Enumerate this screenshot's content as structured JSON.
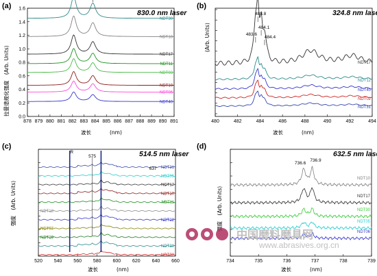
{
  "chart_data": [
    {
      "type": "line",
      "panel_label": "(a)",
      "laser": "830.0 nm laser",
      "xlabel": "(nm)",
      "ylabel": "(Arb. Units)",
      "ylabel_cn": "拉曼谱规化强度",
      "xlim": [
        878,
        891
      ],
      "ylim": [
        0,
        1.6
      ],
      "xticks": [
        878,
        879,
        880,
        881,
        882,
        883,
        884,
        885,
        886,
        887,
        888,
        889,
        890,
        891
      ],
      "yticks": [
        0.0,
        0.2,
        0.4,
        0.6,
        0.8,
        1.0,
        1.2,
        1.4,
        1.6
      ],
      "peaks": [
        {
          "x": 882.1,
          "label": "882.1"
        },
        {
          "x": 883.8,
          "label": "883.8"
        }
      ],
      "series": [
        {
          "name": "NDT30",
          "color": "#2a8a8a",
          "offset": 1.45,
          "amp": [
            0.32,
            0.22
          ]
        },
        {
          "name": "NDT18",
          "color": "#808080",
          "offset": 1.18,
          "amp": [
            0.3,
            0.2
          ]
        },
        {
          "name": "NDT17",
          "color": "#303030",
          "offset": 0.92,
          "amp": [
            0.28,
            0.18
          ]
        },
        {
          "name": "NDT11",
          "color": "#1a8f1a",
          "offset": 0.78,
          "amp": [
            0.22,
            0.15
          ]
        },
        {
          "name": "NDT03",
          "color": "#44bb44",
          "offset": 0.65,
          "amp": [
            0.2,
            0.14
          ]
        },
        {
          "name": "NDT10",
          "color": "#8b1a1a",
          "offset": 0.46,
          "amp": [
            0.2,
            0.14
          ]
        },
        {
          "name": "NDT06",
          "color": "#ff44dd",
          "offset": 0.36,
          "amp": [
            0.16,
            0.12
          ]
        },
        {
          "name": "NDT40",
          "color": "#3333cc",
          "offset": 0.22,
          "amp": [
            0.14,
            0.1
          ]
        }
      ]
    },
    {
      "type": "line",
      "panel_label": "(b)",
      "laser": "324.8 nm laser",
      "xlabel": "(nm)",
      "ylabel": "(Arb. Units)",
      "xlim": [
        480,
        494
      ],
      "xticks": [
        480,
        482,
        484,
        486,
        488,
        490,
        492,
        494
      ],
      "peaks": [
        {
          "x": 483.6,
          "label": "483.6"
        },
        {
          "x": 483.8,
          "label": "483.8"
        },
        {
          "x": 484.1,
          "label": "484.1"
        },
        {
          "x": 484.4,
          "label": "484.4"
        }
      ],
      "series": [
        {
          "name": "NDT17",
          "color": "#303030"
        },
        {
          "name": "NDT12",
          "color": "#2a8a8a"
        },
        {
          "name": "NDT40",
          "color": "#3333cc"
        },
        {
          "name": "NDT02",
          "color": "#cc2222"
        },
        {
          "name": "NDT31",
          "color": "#3344aa"
        }
      ]
    },
    {
      "type": "line",
      "panel_label": "(c)",
      "laser": "514.5 nm laser",
      "xlabel": "(nm)",
      "ylabel": "(Arb. Units)",
      "ylabel_cn": "强度",
      "xlim": [
        520,
        660
      ],
      "xticks": [
        520,
        540,
        560,
        580,
        600,
        620,
        640,
        660
      ],
      "peaks": [
        {
          "x": 552,
          "label": "R"
        },
        {
          "x": 575,
          "label": "575"
        },
        {
          "x": 637,
          "label": "637"
        }
      ],
      "series": [
        {
          "name": "NDT31",
          "color": "#3344aa"
        },
        {
          "name": "NDT05",
          "color": "#22cccc"
        },
        {
          "name": "NDT17",
          "color": "#303030"
        },
        {
          "name": "NDT10",
          "color": "#8b1a1a"
        },
        {
          "name": "NDT11",
          "color": "#1a8f1a"
        },
        {
          "name": "NDT18",
          "color": "#888888"
        },
        {
          "name": "NDT22",
          "color": "#3333cc"
        },
        {
          "name": "NDT07",
          "color": "#808000"
        },
        {
          "name": "NDT29",
          "color": "#1a7a1a"
        },
        {
          "name": "NDT30",
          "color": "#2a8a8a"
        },
        {
          "name": "NDT02",
          "color": "#cc2222"
        }
      ]
    },
    {
      "type": "line",
      "panel_label": "(d)",
      "laser": "632.5 nm laser",
      "xlabel": "(nm)",
      "ylabel": "(Arb. Units)",
      "ylabel_cn": "强度",
      "xlim": [
        734,
        739
      ],
      "xticks": [
        734,
        735,
        736,
        737,
        738,
        739
      ],
      "peaks": [
        {
          "x": 736.6,
          "label": "736.6"
        },
        {
          "x": 736.9,
          "label": "736.9"
        }
      ],
      "series": [
        {
          "name": "NDT10",
          "color": "#808080"
        },
        {
          "name": "NDT17",
          "color": "#303030"
        },
        {
          "name": "NDT30",
          "color": "#33cc33"
        },
        {
          "name": "NDT05",
          "color": "#22cccc"
        },
        {
          "name": "NDT06",
          "color": "#3333cc"
        }
      ]
    }
  ],
  "xlabel_cn": "波长",
  "watermark": {
    "text": "中国磨料磨具网",
    "url": "www.abrasives.org.cn",
    "color": "#b03060"
  }
}
